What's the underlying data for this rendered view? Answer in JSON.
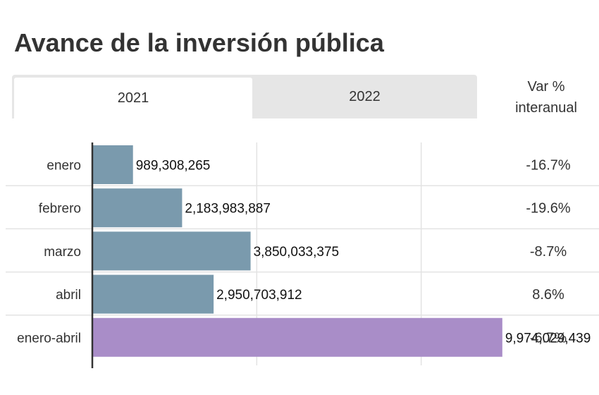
{
  "title": "Avance de la inversión pública",
  "tabs": [
    {
      "label": "2021",
      "active": true
    },
    {
      "label": "2022",
      "active": false
    }
  ],
  "var_header": {
    "line1": "Var %",
    "line2": "interanual"
  },
  "chart_data": {
    "type": "bar",
    "orientation": "horizontal",
    "categories": [
      "enero",
      "febrero",
      "marzo",
      "abril",
      "enero-abril"
    ],
    "values": [
      989308265,
      2183983887,
      3850033375,
      2950703912,
      9974029439
    ],
    "value_labels": [
      "989,308,265",
      "2,183,983,887",
      "3,850,033,375",
      "2,950,703,912",
      "9,974,029,439"
    ],
    "var_interanual": [
      "-16.7%",
      "-19.6%",
      "-8.7%",
      "8.6%",
      "-6.7%"
    ],
    "colors": [
      "#7a9aad",
      "#7a9aad",
      "#7a9aad",
      "#7a9aad",
      "#a98dc8"
    ],
    "xlim": [
      0,
      12000000000
    ],
    "x_gridlines": [
      4000000000,
      8000000000
    ],
    "grid": true
  }
}
